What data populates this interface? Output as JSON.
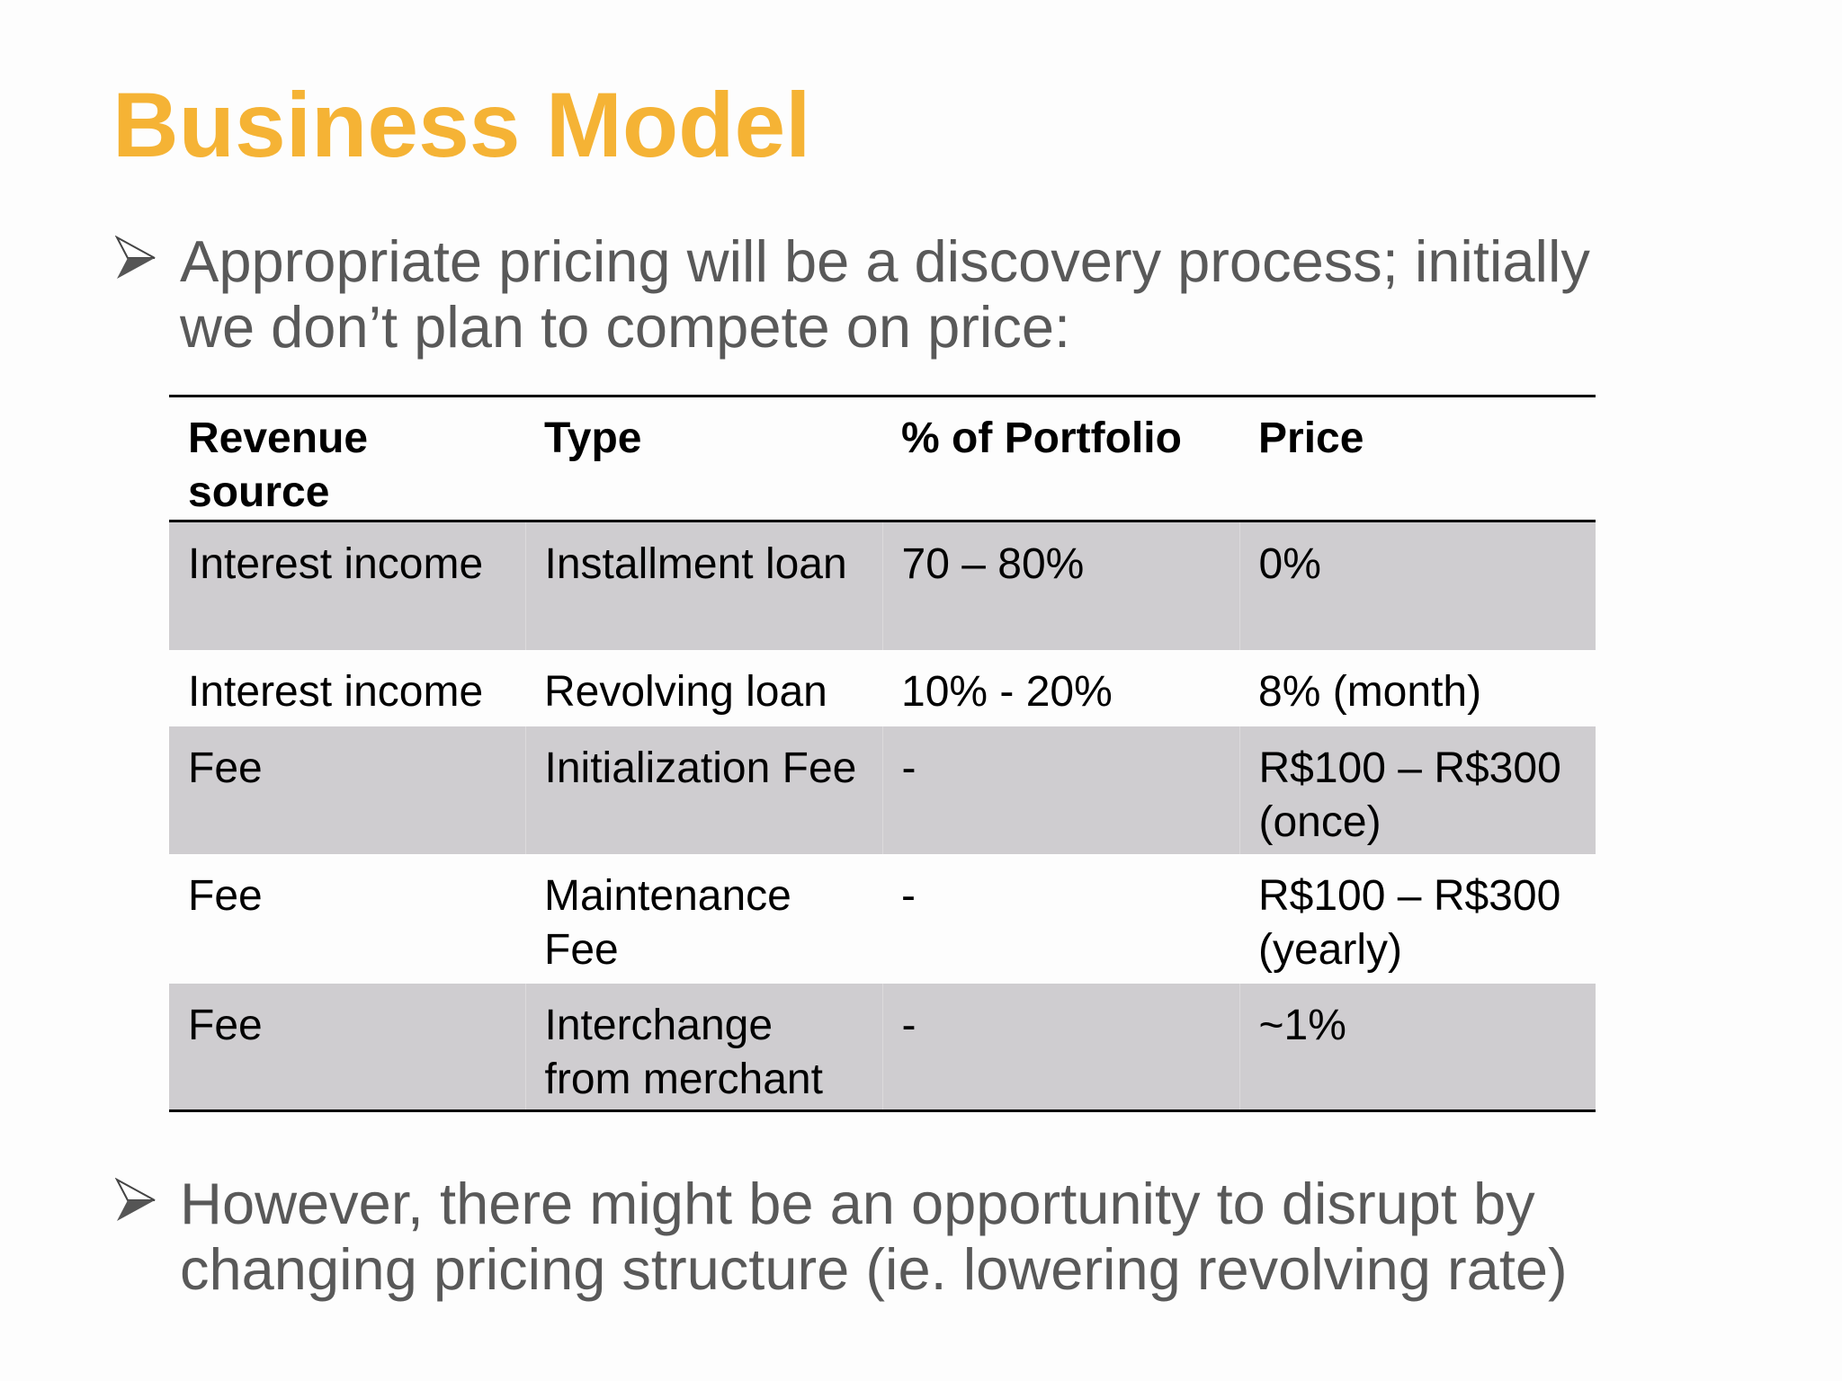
{
  "title": "Business Model",
  "bullets": [
    {
      "icon": "arrowhead-bullet-icon",
      "lines": [
        "Appropriate pricing will be a discovery process; initially",
        "we don’t plan to compete on price:"
      ]
    },
    {
      "icon": "arrowhead-bullet-icon",
      "lines": [
        "However, there might be an opportunity to disrupt by",
        "changing pricing structure (ie. lowering revolving rate)"
      ]
    }
  ],
  "colors": {
    "title": "#F5B335",
    "body_text": "#595959",
    "shaded_row": "#CFCDD0"
  },
  "table": {
    "headers": [
      "Revenue source",
      "Type",
      "% of Portfolio",
      "Price"
    ],
    "rows": [
      [
        "Interest income",
        "Installment loan",
        "70 – 80%",
        "0%"
      ],
      [
        "Interest income",
        "Revolving loan",
        "10% - 20%",
        "8% (month)"
      ],
      [
        "Fee",
        "Initialization Fee",
        "-",
        "R$100 – R$300 (once)"
      ],
      [
        "Fee",
        "Maintenance Fee",
        "-",
        "R$100 – R$300 (yearly)"
      ],
      [
        "Fee",
        "Interchange from merchant",
        "-",
        "~1%"
      ]
    ]
  }
}
